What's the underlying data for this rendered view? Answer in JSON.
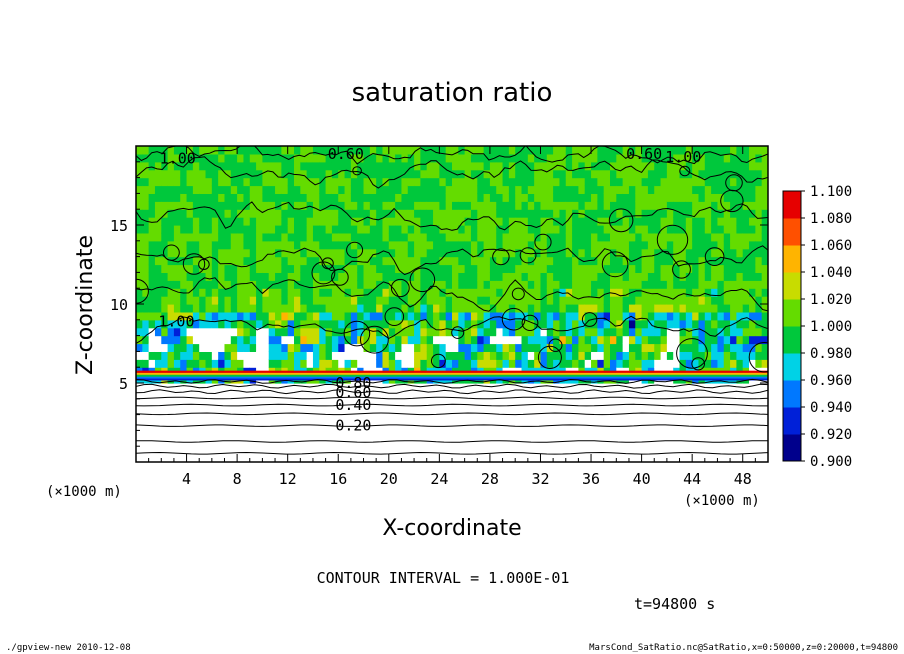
{
  "chart_data": {
    "type": "heatmap",
    "title": "saturation ratio",
    "xlabel": "X-coordinate",
    "ylabel": "Z-coordinate",
    "x_unit": "(×1000 m)",
    "y_unit": "(×1000 m)",
    "xlim": [
      0,
      50
    ],
    "ylim": [
      0,
      20
    ],
    "x_ticks": [
      "4",
      "8",
      "12",
      "16",
      "20",
      "24",
      "28",
      "32",
      "36",
      "40",
      "44",
      "48"
    ],
    "y_ticks": [
      "5",
      "10",
      "15"
    ],
    "colorbar": {
      "levels": [
        "0.900",
        "0.920",
        "0.940",
        "0.960",
        "0.980",
        "1.000",
        "1.020",
        "1.040",
        "1.060",
        "1.080",
        "1.100"
      ],
      "colors": [
        "#7a1cc0",
        "#00008c",
        "#0020d8",
        "#0078ff",
        "#00d2e6",
        "#00c83c",
        "#64dc00",
        "#c8dc00",
        "#ffb400",
        "#ff5000",
        "#e60000",
        "#ff8c8c"
      ]
    },
    "contour_labels": [
      {
        "text": "0.60",
        "x": 16.6,
        "z": 19.5
      },
      {
        "text": "0.60",
        "x": 40.2,
        "z": 19.5
      },
      {
        "text": "1.00",
        "x": 3.3,
        "z": 19.2
      },
      {
        "text": "1.00",
        "x": 43.3,
        "z": 19.3
      },
      {
        "text": "1.00",
        "x": 3.2,
        "z": 8.9
      },
      {
        "text": "0.80",
        "x": 17.2,
        "z": 5.0
      },
      {
        "text": "0.60",
        "x": 17.2,
        "z": 4.4
      },
      {
        "text": "0.40",
        "x": 17.2,
        "z": 3.6
      },
      {
        "text": "0.20",
        "x": 17.2,
        "z": 2.3
      }
    ],
    "annotations": {
      "contour_interval": "CONTOUR INTERVAL = 1.000E-01",
      "time": "t=94800 s"
    }
  },
  "footer": {
    "left": "./gpview-new  2010-12-08",
    "right": "MarsCond_SatRatio.nc@SatRatio,x=0:50000,z=0:20000,t=94800"
  }
}
